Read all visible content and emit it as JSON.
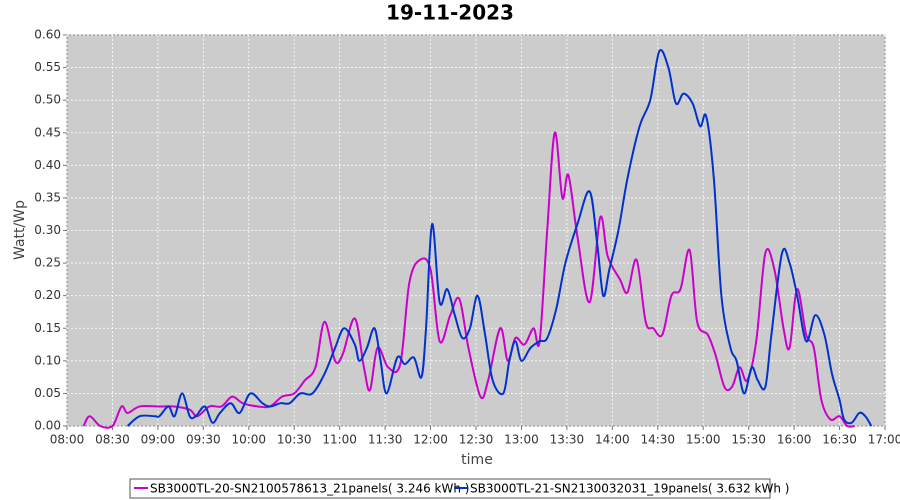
{
  "chart_data": {
    "type": "line",
    "title": "19-11-2023",
    "x_label": "time",
    "y_label": "Watt/Wp",
    "xlim": [
      "08:00",
      "17:00"
    ],
    "xticks": [
      "08:00",
      "08:30",
      "09:00",
      "09:30",
      "10:00",
      "10:30",
      "11:00",
      "11:30",
      "12:00",
      "12:30",
      "13:00",
      "13:30",
      "14:00",
      "14:30",
      "15:00",
      "15:30",
      "16:00",
      "16:30",
      "17:00"
    ],
    "ylim": [
      0,
      0.6
    ],
    "yticks": [
      {
        "value": 0,
        "label": "0.00"
      },
      {
        "value": 0.05,
        "label": "0.05"
      },
      {
        "value": 0.1,
        "label": "0.10"
      },
      {
        "value": 0.15,
        "label": "0.15"
      },
      {
        "value": 0.2,
        "label": "0.20"
      },
      {
        "value": 0.25,
        "label": "0.25"
      },
      {
        "value": 0.3,
        "label": "0.30"
      },
      {
        "value": 0.35,
        "label": "0.35"
      },
      {
        "value": 0.4,
        "label": "0.40"
      },
      {
        "value": 0.45,
        "label": "0.45"
      },
      {
        "value": 0.5,
        "label": "0.50"
      },
      {
        "value": 0.55,
        "label": "0.55"
      },
      {
        "value": 0.6,
        "label": "0.60"
      }
    ],
    "grid": true,
    "series": [
      {
        "name": "SB3000TL-20-SN2100578613_21panels( 3.246 kWh )",
        "color": "#cc00cc",
        "x": [
          "08:11",
          "08:15",
          "08:22",
          "08:30",
          "08:36",
          "08:40",
          "08:48",
          "09:01",
          "09:11",
          "09:21",
          "09:26",
          "09:34",
          "09:42",
          "09:49",
          "09:56",
          "10:06",
          "10:14",
          "10:22",
          "10:30",
          "10:37",
          "10:44",
          "10:50",
          "10:57",
          "11:02",
          "11:10",
          "11:16",
          "11:20",
          "11:25",
          "11:32",
          "11:40",
          "11:46",
          "11:53",
          "12:00",
          "12:06",
          "12:13",
          "12:19",
          "12:25",
          "12:33",
          "12:38",
          "12:46",
          "12:51",
          "12:56",
          "13:02",
          "13:08",
          "13:12",
          "13:17",
          "13:22",
          "13:27",
          "13:31",
          "13:37",
          "13:45",
          "13:52",
          "13:57",
          "14:05",
          "14:10",
          "14:16",
          "14:22",
          "14:27",
          "14:33",
          "14:39",
          "14:45",
          "14:51",
          "14:56",
          "15:03",
          "15:08",
          "15:14",
          "15:19",
          "15:24",
          "15:29",
          "15:35",
          "15:41",
          "15:47",
          "15:53",
          "15:57",
          "16:02",
          "16:08",
          "16:13",
          "16:18",
          "16:24",
          "16:30",
          "16:35",
          "16:40"
        ],
        "values": [
          0,
          0.015,
          0,
          0,
          0.03,
          0.02,
          0.03,
          0.03,
          0.03,
          0.025,
          0.015,
          0.03,
          0.03,
          0.045,
          0.035,
          0.03,
          0.03,
          0.045,
          0.05,
          0.07,
          0.09,
          0.16,
          0.1,
          0.11,
          0.165,
          0.09,
          0.055,
          0.12,
          0.09,
          0.095,
          0.22,
          0.255,
          0.24,
          0.13,
          0.17,
          0.195,
          0.12,
          0.045,
          0.07,
          0.15,
          0.1,
          0.135,
          0.125,
          0.15,
          0.13,
          0.3,
          0.45,
          0.35,
          0.385,
          0.29,
          0.19,
          0.32,
          0.26,
          0.225,
          0.205,
          0.255,
          0.16,
          0.15,
          0.14,
          0.2,
          0.21,
          0.27,
          0.16,
          0.14,
          0.11,
          0.06,
          0.06,
          0.09,
          0.07,
          0.13,
          0.265,
          0.24,
          0.15,
          0.12,
          0.21,
          0.14,
          0.12,
          0.04,
          0.01,
          0.015,
          0,
          0
        ]
      },
      {
        "name": "SB3000TL-21-SN2130032031_19panels( 3.632 kWh )",
        "color": "#0033cc",
        "x": [
          "08:40",
          "08:48",
          "08:58",
          "09:01",
          "09:07",
          "09:11",
          "09:16",
          "09:21",
          "09:25",
          "09:31",
          "09:36",
          "09:41",
          "09:48",
          "09:54",
          "10:01",
          "10:09",
          "10:14",
          "10:21",
          "10:27",
          "10:34",
          "10:42",
          "10:50",
          "10:57",
          "11:03",
          "11:10",
          "11:13",
          "11:18",
          "11:23",
          "11:27",
          "11:31",
          "11:38",
          "11:43",
          "11:49",
          "11:54",
          "11:57",
          "12:01",
          "12:06",
          "12:11",
          "12:16",
          "12:21",
          "12:26",
          "12:31",
          "12:36",
          "12:41",
          "12:48",
          "12:52",
          "12:56",
          "13:00",
          "13:06",
          "13:12",
          "13:17",
          "13:23",
          "13:29",
          "13:37",
          "13:45",
          "13:50",
          "13:54",
          "13:58",
          "14:04",
          "14:10",
          "14:18",
          "14:25",
          "14:31",
          "14:37",
          "14:42",
          "14:47",
          "14:53",
          "14:58",
          "15:02",
          "15:07",
          "15:12",
          "15:18",
          "15:22",
          "15:27",
          "15:32",
          "15:36",
          "15:41",
          "15:45",
          "15:52",
          "15:57",
          "16:02",
          "16:08",
          "16:14",
          "16:20",
          "16:25",
          "16:30",
          "16:33",
          "16:38",
          "16:43",
          "16:47",
          "16:51"
        ],
        "values": [
          0,
          0.015,
          0.015,
          0.015,
          0.03,
          0.015,
          0.05,
          0.015,
          0.015,
          0.03,
          0.005,
          0.02,
          0.035,
          0.02,
          0.05,
          0.035,
          0.03,
          0.035,
          0.035,
          0.05,
          0.05,
          0.08,
          0.12,
          0.15,
          0.125,
          0.1,
          0.12,
          0.15,
          0.1,
          0.05,
          0.105,
          0.095,
          0.105,
          0.075,
          0.15,
          0.31,
          0.19,
          0.21,
          0.17,
          0.135,
          0.15,
          0.2,
          0.14,
          0.07,
          0.05,
          0.1,
          0.13,
          0.1,
          0.12,
          0.13,
          0.135,
          0.18,
          0.25,
          0.31,
          0.36,
          0.28,
          0.2,
          0.24,
          0.3,
          0.38,
          0.46,
          0.5,
          0.575,
          0.55,
          0.495,
          0.51,
          0.495,
          0.46,
          0.475,
          0.38,
          0.2,
          0.12,
          0.1,
          0.05,
          0.09,
          0.07,
          0.06,
          0.14,
          0.265,
          0.25,
          0.2,
          0.13,
          0.17,
          0.14,
          0.08,
          0.04,
          0.01,
          0.005,
          0.02,
          0.015,
          0
        ]
      }
    ]
  }
}
